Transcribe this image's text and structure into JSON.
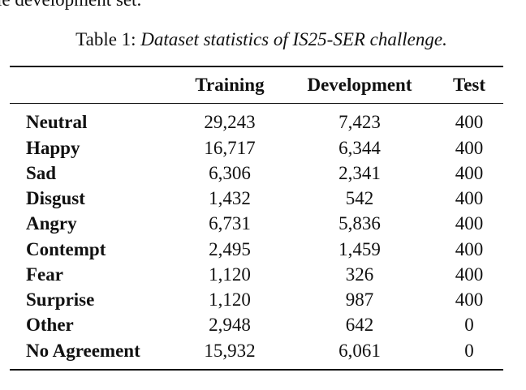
{
  "top_text": "le development set.",
  "caption": {
    "label": "Table 1:",
    "text": "Dataset statistics of IS25-SER challenge."
  },
  "table": {
    "header": [
      "Training",
      "Development",
      "Test"
    ],
    "rows": [
      [
        "Neutral",
        "29,243",
        "7,423",
        "400"
      ],
      [
        "Happy",
        "16,717",
        "6,344",
        "400"
      ],
      [
        "Sad",
        "6,306",
        "2,341",
        "400"
      ],
      [
        "Disgust",
        "1,432",
        "542",
        "400"
      ],
      [
        "Angry",
        "6,731",
        "5,836",
        "400"
      ],
      [
        "Contempt",
        "2,495",
        "1,459",
        "400"
      ],
      [
        "Fear",
        "1,120",
        "326",
        "400"
      ],
      [
        "Surprise",
        "1,120",
        "987",
        "400"
      ],
      [
        "Other",
        "2,948",
        "642",
        "0"
      ],
      [
        "No Agreement",
        "15,932",
        "6,061",
        "0"
      ]
    ]
  }
}
